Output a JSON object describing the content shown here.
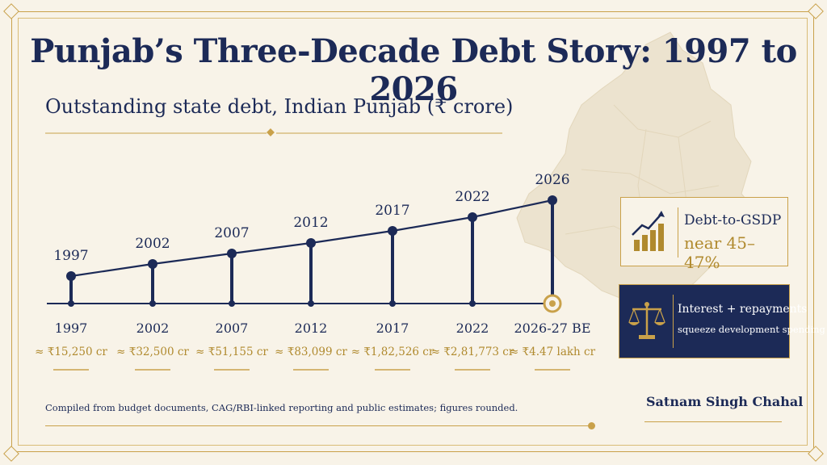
{
  "title": "Punjab’s Three-Decade Debt Story: 1997 to 2026",
  "subtitle": "Outstanding state debt, Indian Punjab (₹ crore)",
  "chart_data": {
    "type": "line",
    "x": [
      "1997",
      "2002",
      "2007",
      "2012",
      "2017",
      "2022",
      "2026"
    ],
    "point_labels": [
      "1997",
      "2002",
      "2007",
      "2012",
      "2017",
      "2022",
      "2026"
    ],
    "axis_labels": [
      "1997",
      "2002",
      "2007",
      "2012",
      "2017",
      "2022",
      "2026-27 BE"
    ],
    "value_labels": [
      "≈ ₹15,250 cr",
      "≈ ₹32,500 cr",
      "≈ ₹51,155 cr",
      "≈ ₹83,099 cr",
      "≈ ₹1,82,526 cr",
      "≈ ₹2,81,773 cr",
      "≈ ₹4.47 lakh cr"
    ],
    "series": [
      {
        "values": [
          15250,
          32500,
          51155,
          83099,
          182526,
          281773,
          447000
        ]
      }
    ],
    "grid": false,
    "colors": {
      "line": "#1c2a57",
      "accent": "#c9a14a",
      "value_text": "#b08a2e"
    }
  },
  "cards": {
    "gsdp": {
      "line1": "Debt-to-GSDP",
      "line2": "near 45–47%",
      "icon": "bar-chart-rising-icon"
    },
    "interest": {
      "line1": "Interest + repayments",
      "line2": "squeeze development spending",
      "icon": "scales-icon"
    }
  },
  "footer": {
    "note": "Compiled from budget documents, CAG/RBI-linked reporting and public estimates; figures rounded.",
    "author": "Satnam Singh Chahal"
  },
  "colors": {
    "navy": "#1c2a57",
    "gold": "#c9a14a",
    "background": "#f8f3e8"
  }
}
